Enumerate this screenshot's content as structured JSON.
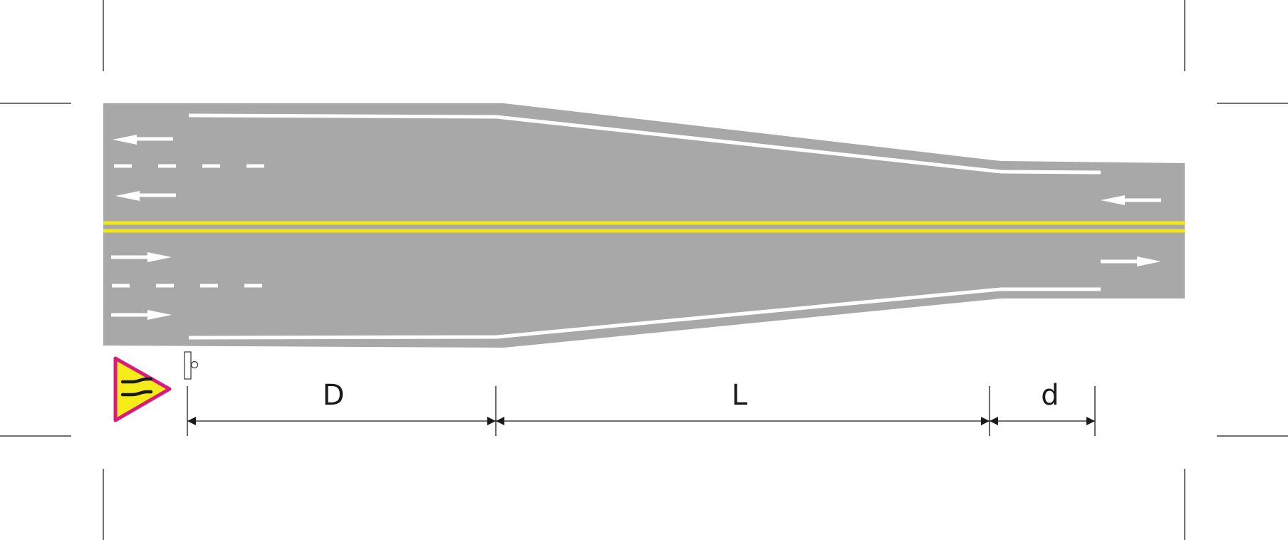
{
  "dimensions": {
    "upstream_distance": "D",
    "taper_length": "L",
    "downstream_distance": "d"
  },
  "sign": {
    "icon": "road-narrows-warning-sign-icon",
    "colors": {
      "border": "#d81b7c",
      "fill": "#f5ec1a",
      "symbol": "#1a1a1a"
    }
  },
  "road": {
    "colors": {
      "pavement": "#a8a8a8",
      "edge_line": "#ffffff",
      "lane_divider": "#ffffff",
      "center_line": "#f2e61c",
      "arrow": "#ffffff"
    },
    "lanes_per_direction_wide": 2,
    "lanes_per_direction_narrow": 1
  }
}
